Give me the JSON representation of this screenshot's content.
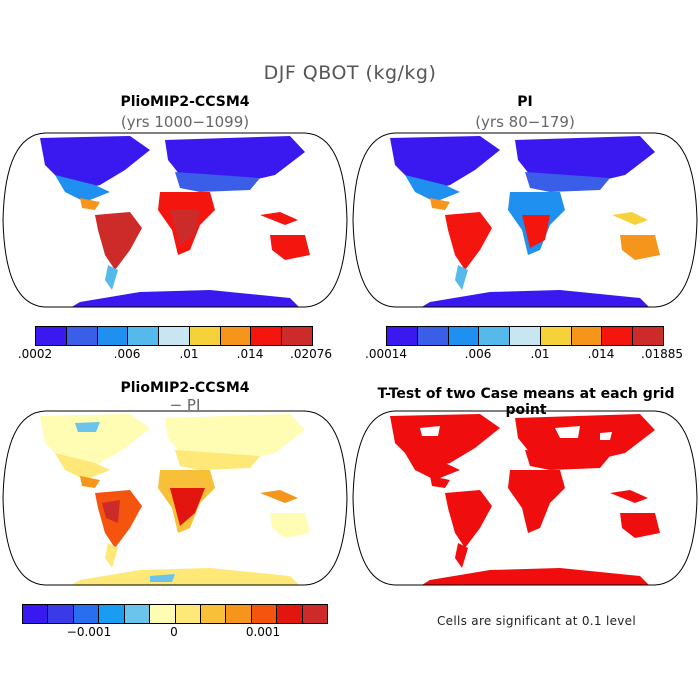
{
  "title": "DJF QBOT (kg/kg)",
  "panels": {
    "p1": {
      "title": "PlioMIP2-CCSM4",
      "subtitle": "(yrs 1000−1099)"
    },
    "p2": {
      "title": "PI",
      "subtitle": "(yrs 80−179)"
    },
    "p3": {
      "title": "PlioMIP2-CCSM4",
      "subtitle": "− PI"
    },
    "p4": {
      "title": "T-Test of two Case means at each grid point",
      "note": "Cells are significant at 0.1 level"
    }
  },
  "colorbars": {
    "cb1": {
      "colors": [
        "#3a19f0",
        "#3a5ee8",
        "#1f8ff0",
        "#55b9ec",
        "#c7e6f2",
        "#f6d23a",
        "#f5951c",
        "#f5150f",
        "#cd2a2a"
      ],
      "ticks": [
        ".0002",
        ".006",
        ".01",
        ".014",
        ".02076"
      ]
    },
    "cb2": {
      "colors": [
        "#3a19f0",
        "#3a5ee8",
        "#1f8ff0",
        "#55b9ec",
        "#c7e6f2",
        "#f6d23a",
        "#f5951c",
        "#f5150f",
        "#cd2a2a"
      ],
      "ticks": [
        ".00014",
        ".006",
        ".01",
        ".014",
        ".01885"
      ]
    },
    "cb3": {
      "colors": [
        "#3a19f0",
        "#3a3ae8",
        "#2a6ef0",
        "#1a9cf0",
        "#6ac4ec",
        "#fffcb4",
        "#fde878",
        "#f7c038",
        "#f5951c",
        "#f5540f",
        "#e2150f",
        "#cd2a2a"
      ],
      "ticks": [
        "−0.001",
        "0",
        "0.001"
      ]
    }
  },
  "map_colors": {
    "ocean": "#ffffff",
    "coast": "#000000",
    "cold": "#3a19f0",
    "cool": "#3a5ee8",
    "mid": "#1f8ff0",
    "light": "#55b9ec",
    "pale": "#c7e6f2",
    "yellow": "#f6d23a",
    "orange": "#f5951c",
    "red": "#f5150f",
    "darkred": "#cd2a2a",
    "diff_pale": "#fffcb4",
    "diff_yellow": "#fde878",
    "diff_lightblue": "#6ac4ec",
    "ttest_red": "#f00d0d"
  }
}
